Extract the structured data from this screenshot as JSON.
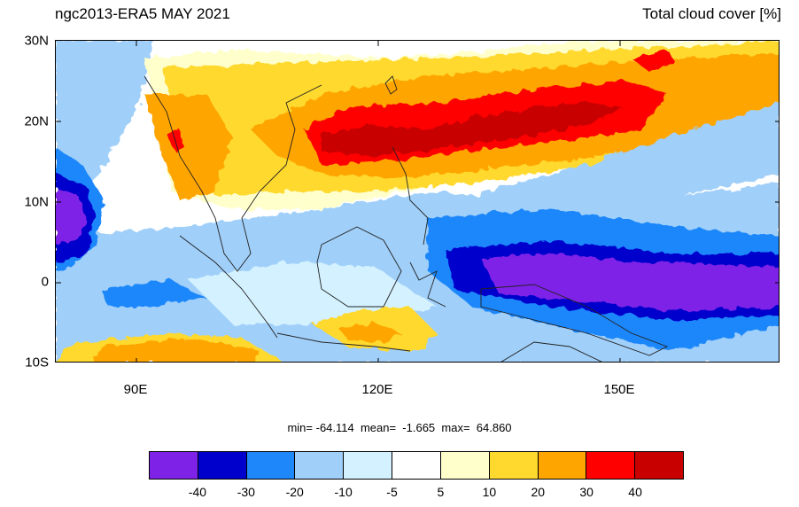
{
  "header": {
    "left_title": "ngc2013-ERA5 MAY 2021",
    "right_title": "Total cloud cover [%]"
  },
  "stats_text": "min= -64.114  mean=  -1.665  max=  64.860",
  "map": {
    "lon_labels": [
      "90E",
      "120E",
      "150E"
    ],
    "lat_labels": [
      "30N",
      "20N",
      "10N",
      "0",
      "10S"
    ]
  },
  "colorbar": {
    "colors": [
      "#7f22e8",
      "#0000cc",
      "#1e87fa",
      "#a0cff9",
      "#d4f1ff",
      "#ffffff",
      "#ffffcc",
      "#ffd92e",
      "#ffa500",
      "#ff0000",
      "#c80000"
    ],
    "tick_labels": [
      "-40",
      "-30",
      "-20",
      "-10",
      "-5",
      "5",
      "10",
      "20",
      "30",
      "40"
    ]
  }
}
